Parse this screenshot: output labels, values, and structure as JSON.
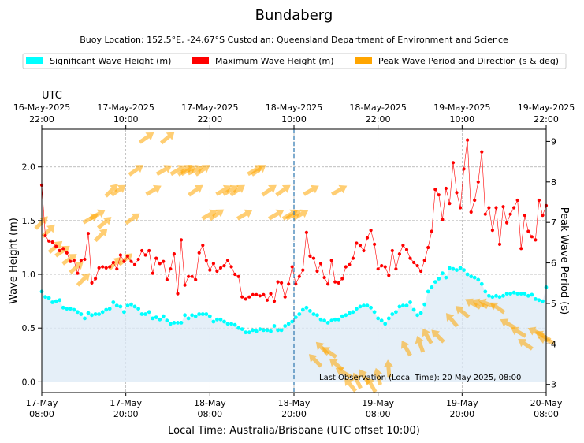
{
  "chart_data": {
    "type": "line",
    "title": "Bundaberg",
    "subtitle": "Buoy Location: 152.5°E, -24.67°S     Custodian: Queensland Department of Environment and Science",
    "legend": {
      "placement": "top",
      "items": [
        {
          "label": "Significant Wave Height (m)",
          "color": "#00ffff"
        },
        {
          "label": "Maximum Wave Height (m)",
          "color": "#ff0000"
        },
        {
          "label": "Peak Wave Period and Direction (s & deg)",
          "color": "#ffa500"
        }
      ]
    },
    "xlabel": "Local Time: Australia/Brisbane (UTC offset 10:00)",
    "ylabel": "Wave Height (m)",
    "y2label": "Peak Wave Period (s)",
    "top_axis_label": "UTC",
    "xlim_hours": [
      0,
      72
    ],
    "ylim": [
      -0.1,
      2.35
    ],
    "y2lim": [
      2.8,
      9.3
    ],
    "yticks": [
      0.0,
      0.5,
      1.0,
      1.5,
      2.0
    ],
    "ytick_labels": [
      "0.0",
      "0.5",
      "1.0",
      "1.5",
      "2.0"
    ],
    "y2ticks": [
      3,
      4,
      5,
      6,
      7,
      8,
      9
    ],
    "y2tick_labels": [
      "3",
      "4",
      "5",
      "6",
      "7",
      "8",
      "9"
    ],
    "bottom_ticks": [
      {
        "hour": 0,
        "line1": "17-May",
        "line2": "08:00"
      },
      {
        "hour": 12,
        "line1": "17-May",
        "line2": "20:00"
      },
      {
        "hour": 24,
        "line1": "18-May",
        "line2": "08:00"
      },
      {
        "hour": 36,
        "line1": "18-May",
        "line2": "20:00"
      },
      {
        "hour": 48,
        "line1": "19-May",
        "line2": "08:00"
      },
      {
        "hour": 60,
        "line1": "19-May",
        "line2": "20:00"
      },
      {
        "hour": 72,
        "line1": "20-May",
        "line2": "08:00"
      }
    ],
    "top_ticks": [
      {
        "hour": 0,
        "line1": "16-May-2025",
        "line2": "22:00"
      },
      {
        "hour": 12,
        "line1": "17-May-2025",
        "line2": "10:00"
      },
      {
        "hour": 24,
        "line1": "17-May-2025",
        "line2": "22:00"
      },
      {
        "hour": 36,
        "line1": "18-May-2025",
        "line2": "10:00"
      },
      {
        "hour": 48,
        "line1": "18-May-2025",
        "line2": "22:00"
      },
      {
        "hour": 60,
        "line1": "19-May-2025",
        "line2": "10:00"
      },
      {
        "hour": 72,
        "line1": "19-May-2025",
        "line2": "22:00"
      }
    ],
    "marker_line_hour": 36,
    "annotation": "Last Observation (Local Time): 20 May 2025, 08:00",
    "grid": true,
    "significant_wave_height": [
      0.84,
      0.79,
      0.78,
      0.74,
      0.75,
      0.76,
      0.69,
      0.68,
      0.68,
      0.67,
      0.65,
      0.63,
      0.59,
      0.64,
      0.62,
      0.63,
      0.63,
      0.65,
      0.67,
      0.68,
      0.74,
      0.71,
      0.7,
      0.65,
      0.71,
      0.72,
      0.7,
      0.68,
      0.63,
      0.63,
      0.65,
      0.59,
      0.6,
      0.58,
      0.61,
      0.57,
      0.54,
      0.55,
      0.55,
      0.55,
      0.62,
      0.59,
      0.62,
      0.61,
      0.63,
      0.63,
      0.63,
      0.61,
      0.56,
      0.58,
      0.58,
      0.56,
      0.54,
      0.54,
      0.53,
      0.5,
      0.49,
      0.46,
      0.46,
      0.48,
      0.47,
      0.49,
      0.48,
      0.48,
      0.47,
      0.52,
      0.48,
      0.48,
      0.52,
      0.54,
      0.56,
      0.6,
      0.63,
      0.67,
      0.69,
      0.66,
      0.63,
      0.62,
      0.58,
      0.57,
      0.55,
      0.57,
      0.58,
      0.58,
      0.61,
      0.62,
      0.64,
      0.65,
      0.68,
      0.7,
      0.71,
      0.71,
      0.69,
      0.65,
      0.59,
      0.57,
      0.54,
      0.59,
      0.63,
      0.65,
      0.7,
      0.71,
      0.71,
      0.74,
      0.67,
      0.62,
      0.64,
      0.72,
      0.84,
      0.88,
      0.93,
      0.96,
      1.01,
      0.97,
      1.06,
      1.05,
      1.04,
      1.06,
      1.04,
      1.0,
      0.98,
      0.97,
      0.95,
      0.91,
      0.84,
      0.8,
      0.79,
      0.8,
      0.79,
      0.8,
      0.82,
      0.82,
      0.83,
      0.82,
      0.82,
      0.82,
      0.8,
      0.81,
      0.77,
      0.76,
      0.75,
      0.88
    ],
    "maximum_wave_height": [
      1.83,
      1.36,
      1.31,
      1.3,
      1.26,
      1.22,
      1.24,
      1.2,
      1.12,
      1.13,
      1.01,
      1.13,
      1.14,
      1.38,
      0.92,
      0.96,
      1.06,
      1.07,
      1.06,
      1.07,
      1.11,
      1.05,
      1.18,
      1.12,
      1.17,
      1.12,
      1.09,
      1.14,
      1.22,
      1.18,
      1.22,
      1.01,
      1.15,
      1.1,
      1.12,
      0.95,
      1.05,
      1.19,
      0.82,
      1.32,
      0.9,
      0.98,
      0.98,
      0.95,
      1.2,
      1.27,
      1.13,
      1.04,
      1.1,
      1.03,
      1.06,
      1.08,
      1.13,
      1.07,
      1.0,
      0.98,
      0.79,
      0.77,
      0.79,
      0.81,
      0.81,
      0.8,
      0.81,
      0.76,
      0.82,
      0.75,
      0.93,
      0.92,
      0.79,
      0.91,
      1.07,
      0.91,
      0.98,
      1.04,
      1.39,
      1.17,
      1.15,
      1.03,
      1.1,
      0.97,
      0.91,
      1.13,
      0.93,
      0.92,
      0.96,
      1.07,
      1.09,
      1.15,
      1.29,
      1.27,
      1.22,
      1.34,
      1.41,
      1.28,
      1.05,
      1.08,
      1.07,
      0.99,
      1.22,
      1.05,
      1.19,
      1.27,
      1.23,
      1.15,
      1.11,
      1.08,
      1.03,
      1.13,
      1.25,
      1.4,
      1.79,
      1.74,
      1.51,
      1.8,
      1.66,
      2.04,
      1.76,
      1.62,
      1.98,
      2.25,
      1.58,
      1.69,
      1.86,
      2.14,
      1.56,
      1.62,
      1.41,
      1.62,
      1.28,
      1.63,
      1.48,
      1.56,
      1.62,
      1.69,
      1.24,
      1.55,
      1.4,
      1.35,
      1.32,
      1.69,
      1.55,
      1.64
    ],
    "peak_wave": [
      {
        "hour": 0.0,
        "period": 7.0,
        "dir": 45
      },
      {
        "hour": 1.0,
        "period": 6.8,
        "dir": 45
      },
      {
        "hour": 2.0,
        "period": 6.4,
        "dir": 50
      },
      {
        "hour": 3.0,
        "period": 6.3,
        "dir": 55
      },
      {
        "hour": 4.0,
        "period": 6.1,
        "dir": 55
      },
      {
        "hour": 5.0,
        "period": 5.9,
        "dir": 50
      },
      {
        "hour": 6.0,
        "period": 5.6,
        "dir": 45
      },
      {
        "hour": 7.0,
        "period": 7.1,
        "dir": 60
      },
      {
        "hour": 8.0,
        "period": 7.2,
        "dir": 60
      },
      {
        "hour": 8.5,
        "period": 6.7,
        "dir": 45
      },
      {
        "hour": 9.0,
        "period": 7.0,
        "dir": 50
      },
      {
        "hour": 10.0,
        "period": 7.8,
        "dir": 45
      },
      {
        "hour": 11.0,
        "period": 7.8,
        "dir": 55
      },
      {
        "hour": 10.5,
        "period": 6.0,
        "dir": 45
      },
      {
        "hour": 12.0,
        "period": 6.1,
        "dir": 50
      },
      {
        "hour": 13.0,
        "period": 7.1,
        "dir": 55
      },
      {
        "hour": 15.0,
        "period": 9.1,
        "dir": 55
      },
      {
        "hour": 13.5,
        "period": 8.3,
        "dir": 55
      },
      {
        "hour": 18.0,
        "period": 9.1,
        "dir": 50
      },
      {
        "hour": 16.0,
        "period": 7.8,
        "dir": 60
      },
      {
        "hour": 17.5,
        "period": 8.3,
        "dir": 60
      },
      {
        "hour": 19.5,
        "period": 8.3,
        "dir": 60
      },
      {
        "hour": 20.5,
        "period": 8.3,
        "dir": 55
      },
      {
        "hour": 21.0,
        "period": 8.3,
        "dir": 60
      },
      {
        "hour": 22.0,
        "period": 8.3,
        "dir": 65
      },
      {
        "hour": 23.0,
        "period": 8.3,
        "dir": 55
      },
      {
        "hour": 22.0,
        "period": 7.8,
        "dir": 55
      },
      {
        "hour": 24.0,
        "period": 7.2,
        "dir": 60
      },
      {
        "hour": 25.0,
        "period": 7.2,
        "dir": 55
      },
      {
        "hour": 26.0,
        "period": 7.8,
        "dir": 60
      },
      {
        "hour": 27.0,
        "period": 7.8,
        "dir": 60
      },
      {
        "hour": 28.0,
        "period": 7.8,
        "dir": 55
      },
      {
        "hour": 29.0,
        "period": 7.2,
        "dir": 60
      },
      {
        "hour": 30.5,
        "period": 8.3,
        "dir": 60
      },
      {
        "hour": 31.0,
        "period": 8.3,
        "dir": 55
      },
      {
        "hour": 32.5,
        "period": 7.8,
        "dir": 55
      },
      {
        "hour": 33.5,
        "period": 7.2,
        "dir": 60
      },
      {
        "hour": 34.5,
        "period": 7.8,
        "dir": 55
      },
      {
        "hour": 35.5,
        "period": 7.2,
        "dir": 60
      },
      {
        "hour": 36.0,
        "period": 7.2,
        "dir": 60
      },
      {
        "hour": 37.0,
        "period": 7.2,
        "dir": 60
      },
      {
        "hour": 38.5,
        "period": 7.8,
        "dir": 60
      },
      {
        "hour": 42.5,
        "period": 7.8,
        "dir": 60
      },
      {
        "hour": 39.0,
        "period": 3.6,
        "dir": 315
      },
      {
        "hour": 40.0,
        "period": 3.9,
        "dir": 315
      },
      {
        "hour": 41.0,
        "period": 3.8,
        "dir": 305
      },
      {
        "hour": 42.0,
        "period": 3.5,
        "dir": 310
      },
      {
        "hour": 43.0,
        "period": 3.3,
        "dir": 300
      },
      {
        "hour": 44.0,
        "period": 3.0,
        "dir": 320
      },
      {
        "hour": 45.0,
        "period": 3.1,
        "dir": 335
      },
      {
        "hour": 46.0,
        "period": 3.2,
        "dir": 325
      },
      {
        "hour": 47.0,
        "period": 3.0,
        "dir": 330
      },
      {
        "hour": 48.0,
        "period": 3.2,
        "dir": 345
      },
      {
        "hour": 49.5,
        "period": 3.4,
        "dir": 355
      },
      {
        "hour": 52.0,
        "period": 3.9,
        "dir": 330
      },
      {
        "hour": 54.0,
        "period": 4.0,
        "dir": 340
      },
      {
        "hour": 55.0,
        "period": 4.2,
        "dir": 330
      },
      {
        "hour": 56.5,
        "period": 4.2,
        "dir": 315
      },
      {
        "hour": 58.5,
        "period": 4.6,
        "dir": 320
      },
      {
        "hour": 60.0,
        "period": 4.8,
        "dir": 310
      },
      {
        "hour": 61.5,
        "period": 5.0,
        "dir": 300
      },
      {
        "hour": 62.5,
        "period": 5.0,
        "dir": 295
      },
      {
        "hour": 63.5,
        "period": 5.0,
        "dir": 290
      },
      {
        "hour": 65.0,
        "period": 4.9,
        "dir": 305
      },
      {
        "hour": 66.5,
        "period": 4.5,
        "dir": 300
      },
      {
        "hour": 68.0,
        "period": 4.3,
        "dir": 300
      },
      {
        "hour": 69.0,
        "period": 4.0,
        "dir": 305
      },
      {
        "hour": 70.5,
        "period": 4.3,
        "dir": 295
      },
      {
        "hour": 71.5,
        "period": 4.2,
        "dir": 300
      },
      {
        "hour": 72.0,
        "period": 4.1,
        "dir": 290
      }
    ]
  }
}
